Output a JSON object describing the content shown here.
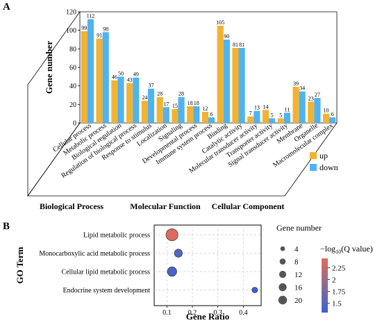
{
  "chart_data": [
    {
      "panel_label": "A",
      "type": "bar",
      "ylabel": "Gene number",
      "ylim": [
        0,
        120
      ],
      "yticks": [
        0,
        20,
        40,
        60,
        80,
        100,
        120
      ],
      "categories": [
        "Cellular process",
        "Metabolic process",
        "Biological regulation",
        "Regulation of biological process",
        "Response to stimulus",
        "Localization",
        "Signaling",
        "Developmental process",
        "Immune system process",
        "Binding",
        "Catalytic activity",
        "Molecular transducer activity",
        "Transporter activity",
        "Signal transducer activity",
        "Membrane",
        "Organelle",
        "Macromolecular complex"
      ],
      "series": [
        {
          "name": "up",
          "color": "#f2b233",
          "values": [
            99,
            91,
            46,
            43,
            24,
            28,
            15,
            18,
            12,
            105,
            81,
            7,
            14,
            5,
            39,
            23,
            10
          ]
        },
        {
          "name": "down",
          "color": "#4fb3f0",
          "values": [
            112,
            98,
            50,
            49,
            37,
            17,
            28,
            18,
            6,
            90,
            81,
            13,
            5,
            11,
            34,
            27,
            6
          ]
        }
      ],
      "groups": [
        {
          "label": "Biological Process",
          "start": 0,
          "end": 8
        },
        {
          "label": "Molecular Function",
          "start": 9,
          "end": 13
        },
        {
          "label": "Cellular Component",
          "start": 14,
          "end": 16
        }
      ],
      "legend_position": "right"
    },
    {
      "panel_label": "B",
      "type": "scatter",
      "xlabel": "Gene Ratio",
      "ylabel": "GO Term",
      "xlim": [
        0.05,
        0.47
      ],
      "xticks": [
        0.1,
        0.2,
        0.3,
        0.4
      ],
      "categories": [
        "Lipid metabolic process",
        "Monocarboxylic acid metabolic process",
        "Cellular lipid metabolic process",
        "Endocrine system development"
      ],
      "points": [
        {
          "term": "Lipid metabolic process",
          "gene_ratio": 0.12,
          "gene_number": 22,
          "neg_log10_q": 2.4
        },
        {
          "term": "Monocarboxylic acid metabolic process",
          "gene_ratio": 0.145,
          "gene_number": 8,
          "neg_log10_q": 1.5
        },
        {
          "term": "Cellular lipid metabolic process",
          "gene_ratio": 0.12,
          "gene_number": 12,
          "neg_log10_q": 1.4
        },
        {
          "term": "Endocrine system development",
          "gene_ratio": 0.445,
          "gene_number": 3,
          "neg_log10_q": 1.3
        }
      ],
      "size_legend": {
        "title": "Gene number",
        "values": [
          "4",
          "8",
          "12",
          "16",
          "20"
        ]
      },
      "color_legend": {
        "title_prefix": "−log",
        "title_sub": "10",
        "title_suffix": "(Q value)",
        "range": [
          1.3,
          2.45
        ],
        "ticks": [
          "2.25",
          "2",
          "1.75",
          "1.5"
        ],
        "colors": [
          "#3a62d6",
          "#8b6b8f",
          "#e26b5c"
        ]
      }
    }
  ]
}
